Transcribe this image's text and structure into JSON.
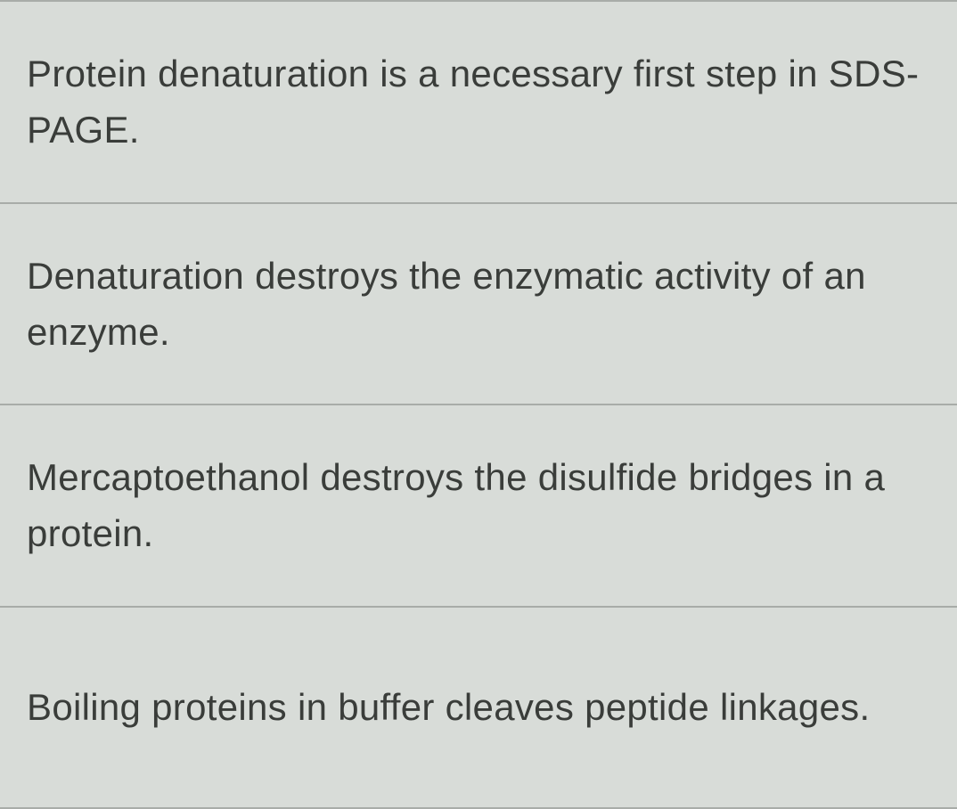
{
  "background_color": "#d8dcd8",
  "text_color": "#3a3d3a",
  "border_color": "#a8aca8",
  "font_size": 42,
  "options": [
    {
      "text": "Protein denaturation is a necessary first step in SDS-PAGE."
    },
    {
      "text": "Denaturation destroys the enzymatic activity of an enzyme."
    },
    {
      "text": "Mercaptoethanol destroys the disulfide bridges in a protein."
    },
    {
      "text": "Boiling proteins in buffer cleaves peptide linkages."
    }
  ]
}
